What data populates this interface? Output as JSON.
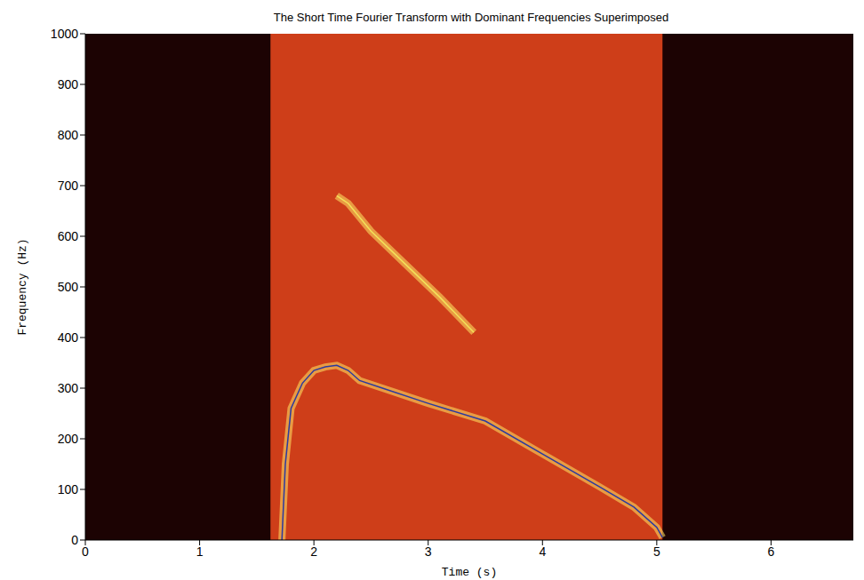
{
  "chart_data": {
    "type": "line",
    "title": "The Short Time Fourier Transform with Dominant Frequencies Superimposed",
    "x_label": "Time (s)",
    "y_label": "Frequency (Hz)",
    "xlim": [
      0,
      6.72
    ],
    "ylim": [
      0,
      1000
    ],
    "xticks": [
      0,
      1,
      2,
      3,
      4,
      5,
      6
    ],
    "yticks": [
      0,
      100,
      200,
      300,
      400,
      500,
      600,
      700,
      800,
      900,
      1000
    ],
    "grid": false,
    "series": [
      {
        "type": "area",
        "color": "#e2451c",
        "x": [
          1.62,
          5.05
        ],
        "values": [
          1000,
          1000
        ]
      },
      {
        "type": "line",
        "color": "#f2e35a",
        "x": [
          2.2,
          2.3,
          2.5,
          2.8,
          3.1,
          3.4
        ],
        "values": [
          680,
          665,
          610,
          545,
          480,
          410
        ]
      },
      {
        "type": "line",
        "color": "#2b3aa0",
        "x": [
          1.72,
          1.75,
          1.8,
          1.9,
          2.0,
          2.1,
          2.2,
          2.3,
          2.4,
          2.6,
          3.0,
          3.5,
          4.0,
          4.5,
          4.8,
          5.0,
          5.05
        ],
        "values": [
          0,
          150,
          260,
          310,
          335,
          342,
          345,
          335,
          315,
          300,
          270,
          235,
          170,
          105,
          65,
          25,
          5
        ]
      }
    ]
  }
}
